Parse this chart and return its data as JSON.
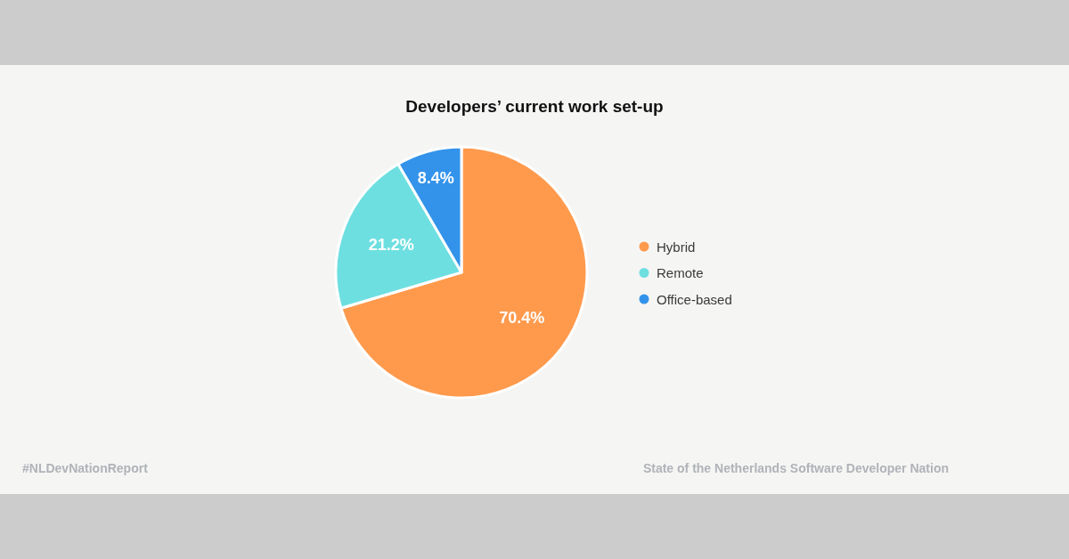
{
  "chart_data": {
    "type": "pie",
    "title": "Developers’ current work set-up",
    "categories": [
      "Hybrid",
      "Remote",
      "Office-based"
    ],
    "values": [
      70.4,
      21.2,
      8.4
    ],
    "colors": [
      "#ff9a4d",
      "#6edfe0",
      "#3393ea"
    ],
    "value_labels": [
      "70.4%",
      "21.2%",
      "8.4%"
    ],
    "legend": "right",
    "annotations": [
      "#NLDevNationReport",
      "State of the Netherlands Software Developer Nation"
    ]
  }
}
